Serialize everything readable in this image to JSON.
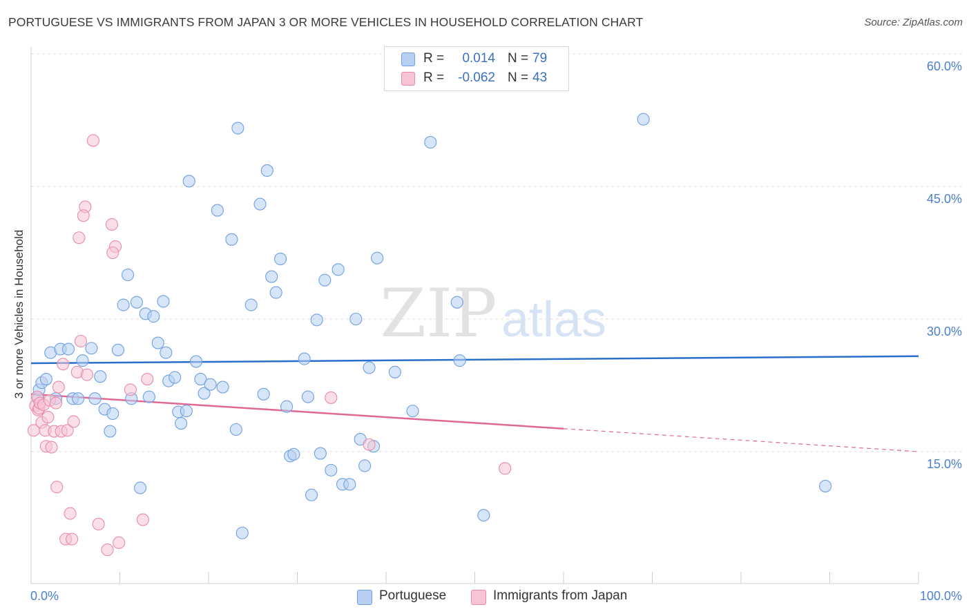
{
  "header": {
    "title": "PORTUGUESE VS IMMIGRANTS FROM JAPAN 3 OR MORE VEHICLES IN HOUSEHOLD CORRELATION CHART",
    "source": "Source: ZipAtlas.com"
  },
  "watermark": "ZIPatlas",
  "colors": {
    "portuguese": "#6f9fe0",
    "portuguese_fill": "#b7cff2",
    "japan": "#e98aab",
    "japan_fill": "#f7c4d4",
    "portuguese_line": "#2a6fcb",
    "japan_line": "#e06894",
    "tick_text": "#4a7fd0"
  },
  "legend": {
    "rows": [
      {
        "r_label": "R =",
        "r_value": "0.014",
        "n_label": "N =",
        "n_value": "79"
      },
      {
        "r_label": "R =",
        "r_value": "-0.062",
        "n_label": "N =",
        "n_value": "43"
      }
    ]
  },
  "bottom_legend": {
    "items": [
      {
        "label": "Portuguese"
      },
      {
        "label": "Immigrants from Japan"
      }
    ]
  },
  "chart_data": {
    "type": "scatter",
    "title": "PORTUGUESE VS IMMIGRANTS FROM JAPAN 3 OR MORE VEHICLES IN HOUSEHOLD CORRELATION CHART",
    "ylabel": "3 or more Vehicles in Household",
    "xlabel": "",
    "xlim": [
      0,
      100
    ],
    "ylim": [
      0,
      62
    ],
    "x_tick_labels": {
      "left": "0.0%",
      "right": "100.0%"
    },
    "y_ticks": [
      {
        "value": 15,
        "label": "15.0%"
      },
      {
        "value": 30,
        "label": "30.0%"
      },
      {
        "value": 45,
        "label": "45.0%"
      },
      {
        "value": 60,
        "label": "60.0%"
      }
    ],
    "grid": "horizontal dashed",
    "series": [
      {
        "name": "Portuguese",
        "r": 0.014,
        "n": 79,
        "trend": {
          "x0": 0,
          "y0": 25.0,
          "x1": 100,
          "y1": 25.8
        },
        "points": [
          [
            0.8,
            21.0
          ],
          [
            0.9,
            22.0
          ],
          [
            1.2,
            22.8
          ],
          [
            1.7,
            23.2
          ],
          [
            2.2,
            26.2
          ],
          [
            2.8,
            21.0
          ],
          [
            3.3,
            26.6
          ],
          [
            4.2,
            26.6
          ],
          [
            4.7,
            21.0
          ],
          [
            5.3,
            21.0
          ],
          [
            5.8,
            25.3
          ],
          [
            6.8,
            26.7
          ],
          [
            7.2,
            21.0
          ],
          [
            7.8,
            23.5
          ],
          [
            8.3,
            19.8
          ],
          [
            8.9,
            17.3
          ],
          [
            9.2,
            19.3
          ],
          [
            9.8,
            26.5
          ],
          [
            10.4,
            31.6
          ],
          [
            10.9,
            35.0
          ],
          [
            11.3,
            21.0
          ],
          [
            11.9,
            31.9
          ],
          [
            12.3,
            10.9
          ],
          [
            12.9,
            30.6
          ],
          [
            13.3,
            21.2
          ],
          [
            13.8,
            30.3
          ],
          [
            14.3,
            27.3
          ],
          [
            14.9,
            32.0
          ],
          [
            15.2,
            26.2
          ],
          [
            15.5,
            23.0
          ],
          [
            16.2,
            23.4
          ],
          [
            16.6,
            19.5
          ],
          [
            16.9,
            18.2
          ],
          [
            17.5,
            19.6
          ],
          [
            17.8,
            45.6
          ],
          [
            18.6,
            25.2
          ],
          [
            19.1,
            23.2
          ],
          [
            19.5,
            21.6
          ],
          [
            20.2,
            22.6
          ],
          [
            21.0,
            42.3
          ],
          [
            21.6,
            22.3
          ],
          [
            22.6,
            39.0
          ],
          [
            23.1,
            17.5
          ],
          [
            23.3,
            51.6
          ],
          [
            23.8,
            5.8
          ],
          [
            24.8,
            31.6
          ],
          [
            25.8,
            43.0
          ],
          [
            26.2,
            21.5
          ],
          [
            26.6,
            46.8
          ],
          [
            27.1,
            34.8
          ],
          [
            27.6,
            33.0
          ],
          [
            28.1,
            36.8
          ],
          [
            28.8,
            20.1
          ],
          [
            29.2,
            14.5
          ],
          [
            29.6,
            14.7
          ],
          [
            30.8,
            25.5
          ],
          [
            31.2,
            21.2
          ],
          [
            31.6,
            10.1
          ],
          [
            32.2,
            29.9
          ],
          [
            32.6,
            14.8
          ],
          [
            33.1,
            34.4
          ],
          [
            33.8,
            12.9
          ],
          [
            34.6,
            35.6
          ],
          [
            35.1,
            11.3
          ],
          [
            35.9,
            11.3
          ],
          [
            36.6,
            30.0
          ],
          [
            37.1,
            16.4
          ],
          [
            37.6,
            13.4
          ],
          [
            38.1,
            24.5
          ],
          [
            38.6,
            15.6
          ],
          [
            39.0,
            36.9
          ],
          [
            41.0,
            24.0
          ],
          [
            43.0,
            19.6
          ],
          [
            45.0,
            50.0
          ],
          [
            48.0,
            31.9
          ],
          [
            48.3,
            25.3
          ],
          [
            51.0,
            7.8
          ],
          [
            69.0,
            52.6
          ],
          [
            89.5,
            11.1
          ]
        ]
      },
      {
        "name": "Immigrants from Japan",
        "r": -0.062,
        "n": 43,
        "trend": {
          "x0": 0,
          "y0": 21.5,
          "x1": 100,
          "y1": 15.0,
          "solid_until_x": 60
        },
        "points": [
          [
            0.3,
            17.4
          ],
          [
            0.5,
            20.2
          ],
          [
            0.7,
            21.2
          ],
          [
            0.8,
            19.7
          ],
          [
            0.9,
            19.9
          ],
          [
            1.0,
            20.5
          ],
          [
            1.2,
            18.3
          ],
          [
            1.4,
            20.3
          ],
          [
            1.6,
            17.4
          ],
          [
            1.7,
            15.6
          ],
          [
            1.9,
            18.9
          ],
          [
            2.1,
            20.8
          ],
          [
            2.3,
            15.5
          ],
          [
            2.6,
            17.3
          ],
          [
            2.8,
            20.5
          ],
          [
            2.9,
            11.0
          ],
          [
            3.1,
            22.3
          ],
          [
            3.4,
            17.3
          ],
          [
            3.6,
            24.9
          ],
          [
            3.9,
            5.1
          ],
          [
            4.1,
            17.4
          ],
          [
            4.4,
            8.0
          ],
          [
            4.6,
            5.1
          ],
          [
            4.8,
            18.4
          ],
          [
            5.2,
            24.0
          ],
          [
            5.4,
            39.2
          ],
          [
            5.6,
            27.5
          ],
          [
            6.1,
            42.7
          ],
          [
            6.3,
            23.7
          ],
          [
            5.9,
            41.7
          ],
          [
            7.0,
            50.2
          ],
          [
            7.6,
            6.8
          ],
          [
            8.6,
            3.9
          ],
          [
            9.1,
            40.7
          ],
          [
            9.5,
            38.2
          ],
          [
            9.9,
            4.7
          ],
          [
            9.2,
            37.5
          ],
          [
            11.2,
            22.0
          ],
          [
            12.6,
            7.3
          ],
          [
            13.1,
            23.2
          ],
          [
            33.8,
            21.1
          ],
          [
            38.1,
            15.8
          ],
          [
            53.4,
            13.1
          ]
        ]
      }
    ]
  }
}
